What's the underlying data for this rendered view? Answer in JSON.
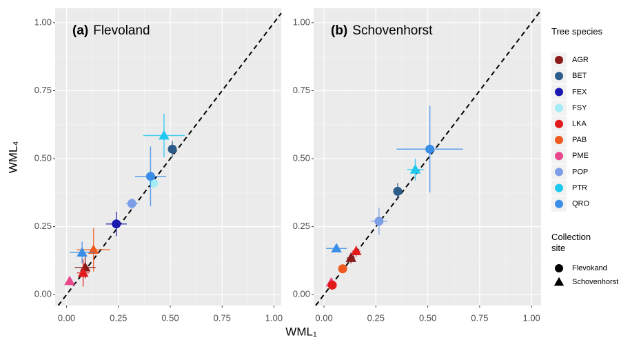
{
  "chart_data": [
    {
      "type": "scatter",
      "panel_label": "(a)",
      "title": "Flevoland",
      "xlim": [
        -0.055,
        1.035
      ],
      "ylim": [
        -0.04,
        1.053
      ],
      "xticks": [
        {
          "value": 0,
          "label": "0.00"
        },
        {
          "value": 0.25,
          "label": "0.25"
        },
        {
          "value": 0.5,
          "label": "0.50"
        },
        {
          "value": 0.75,
          "label": "0.75"
        },
        {
          "value": 1,
          "label": "1.00"
        }
      ],
      "yticks": [
        {
          "value": 0,
          "label": "0.00"
        },
        {
          "value": 0.25,
          "label": "0.25"
        },
        {
          "value": 0.5,
          "label": "0.50"
        },
        {
          "value": 0.75,
          "label": "0.75"
        },
        {
          "value": 1,
          "label": "1.00"
        }
      ],
      "minor_ticks": [
        0.125,
        0.375,
        0.625,
        0.875
      ],
      "grid": true,
      "series": [
        {
          "name": "BET",
          "color": "#2b5c8a",
          "marker": "circle",
          "x": [
            0.51
          ],
          "values": [
            0.535
          ],
          "xerr": [
            0.02
          ],
          "yerr": [
            0.03
          ]
        },
        {
          "name": "PTR",
          "color": "#1ec8f0",
          "marker": "triangle",
          "x": [
            0.47
          ],
          "values": [
            0.585
          ],
          "xerr": [
            0.1
          ],
          "yerr": [
            0.08
          ]
        },
        {
          "name": "FSY",
          "color": "#a6ecf5",
          "marker": "circle",
          "x": [
            0.42
          ],
          "values": [
            0.41
          ],
          "xerr": [
            0.02
          ],
          "yerr": [
            0.02
          ]
        },
        {
          "name": "QRO",
          "color": "#3a8ee8",
          "marker": "circle",
          "x": [
            0.405
          ],
          "values": [
            0.435
          ],
          "xerr": [
            0.075
          ],
          "yerr": [
            0.11
          ]
        },
        {
          "name": "POP",
          "color": "#7b9ee6",
          "marker": "circle",
          "x": [
            0.315
          ],
          "values": [
            0.335
          ],
          "xerr": [
            0.03
          ],
          "yerr": [
            0.02
          ]
        },
        {
          "name": "FEX",
          "color": "#1a1ab0",
          "marker": "circle",
          "x": [
            0.24
          ],
          "values": [
            0.26
          ],
          "xerr": [
            0.05
          ],
          "yerr": [
            0.045
          ]
        },
        {
          "name": "PAB",
          "color": "#f05a1e",
          "marker": "triangle",
          "x": [
            0.13
          ],
          "values": [
            0.165
          ],
          "xerr": [
            0.08
          ],
          "yerr": [
            0.08
          ]
        },
        {
          "name": "QRO",
          "color": "#3a8ee8",
          "marker": "triangle",
          "x": [
            0.075
          ],
          "values": [
            0.155
          ],
          "xerr": [
            0.06
          ],
          "yerr": [
            0.04
          ]
        },
        {
          "name": "AGR",
          "color": "#8b1a1a",
          "marker": "triangle",
          "x": [
            0.09
          ],
          "values": [
            0.1
          ],
          "xerr": [
            0.05
          ],
          "yerr": [
            0.04
          ]
        },
        {
          "name": "LKA",
          "color": "#e31a1c",
          "marker": "triangle",
          "x": [
            0.08
          ],
          "values": [
            0.08
          ],
          "xerr": [
            0.03
          ],
          "yerr": [
            0.05
          ]
        },
        {
          "name": "PME",
          "color": "#e8478c",
          "marker": "triangle",
          "x": [
            0.015
          ],
          "values": [
            0.05
          ],
          "xerr": [
            0.01
          ],
          "yerr": [
            0.01
          ]
        }
      ]
    },
    {
      "type": "scatter",
      "panel_label": "(b)",
      "title": "Schovenhorst",
      "xlim": [
        -0.05,
        1.046
      ],
      "ylim": [
        -0.04,
        1.053
      ],
      "xticks": [
        {
          "value": 0,
          "label": "0.00"
        },
        {
          "value": 0.25,
          "label": "0.25"
        },
        {
          "value": 0.5,
          "label": "0.50"
        },
        {
          "value": 0.75,
          "label": "0.75"
        },
        {
          "value": 1,
          "label": "1.00"
        }
      ],
      "yticks": [
        {
          "value": 0,
          "label": "0.00"
        },
        {
          "value": 0.25,
          "label": "0.25"
        },
        {
          "value": 0.5,
          "label": "0.50"
        },
        {
          "value": 0.75,
          "label": "0.75"
        },
        {
          "value": 1,
          "label": "1.00"
        }
      ],
      "minor_ticks": [
        0.125,
        0.375,
        0.625,
        0.875
      ],
      "grid": true,
      "series": [
        {
          "name": "QRO",
          "color": "#3a8ee8",
          "marker": "circle",
          "x": [
            0.51
          ],
          "values": [
            0.535
          ],
          "xerr": [
            0.16
          ],
          "yerr": [
            0.16
          ]
        },
        {
          "name": "PTR",
          "color": "#1ec8f0",
          "marker": "triangle",
          "x": [
            0.44
          ],
          "values": [
            0.46
          ],
          "xerr": [
            0.04
          ],
          "yerr": [
            0.04
          ]
        },
        {
          "name": "BET",
          "color": "#2b5c8a",
          "marker": "circle",
          "x": [
            0.355
          ],
          "values": [
            0.38
          ],
          "xerr": [
            0.015
          ],
          "yerr": [
            0.03
          ]
        },
        {
          "name": "POP",
          "color": "#7b9ee6",
          "marker": "circle",
          "x": [
            0.265
          ],
          "values": [
            0.27
          ],
          "xerr": [
            0.04
          ],
          "yerr": [
            0.05
          ]
        },
        {
          "name": "QRO",
          "color": "#3a8ee8",
          "marker": "triangle",
          "x": [
            0.06
          ],
          "values": [
            0.17
          ],
          "xerr": [
            0.05
          ],
          "yerr": [
            0.01
          ]
        },
        {
          "name": "LKA",
          "color": "#e31a1c",
          "marker": "triangle",
          "x": [
            0.155
          ],
          "values": [
            0.16
          ],
          "xerr": [
            0.02
          ],
          "yerr": [
            0.02
          ]
        },
        {
          "name": "AGR",
          "color": "#8b1a1a",
          "marker": "triangle",
          "x": [
            0.13
          ],
          "values": [
            0.135
          ],
          "xerr": [
            0.02
          ],
          "yerr": [
            0.02
          ]
        },
        {
          "name": "PAB",
          "color": "#f05a1e",
          "marker": "circle",
          "x": [
            0.09
          ],
          "values": [
            0.095
          ],
          "xerr": [
            0.01
          ],
          "yerr": [
            0.01
          ]
        },
        {
          "name": "PME",
          "color": "#e8478c",
          "marker": "triangle",
          "x": [
            0.035
          ],
          "values": [
            0.045
          ],
          "xerr": [
            0.01
          ],
          "yerr": [
            0.01
          ]
        },
        {
          "name": "LKA",
          "color": "#e31a1c",
          "marker": "circle",
          "x": [
            0.04
          ],
          "values": [
            0.035
          ],
          "xerr": [
            0.01
          ],
          "yerr": [
            0.01
          ]
        }
      ]
    }
  ],
  "xlabel": "WML₁",
  "ylabel": "WML₄",
  "legend": {
    "title": "Tree species",
    "items": [
      {
        "name": "AGR",
        "color": "#8b1a1a"
      },
      {
        "name": "BET",
        "color": "#2b5c8a"
      },
      {
        "name": "FEX",
        "color": "#1a1ab0"
      },
      {
        "name": "FSY",
        "color": "#a6ecf5"
      },
      {
        "name": "LKA",
        "color": "#e31a1c"
      },
      {
        "name": "PAB",
        "color": "#f05a1e"
      },
      {
        "name": "PME",
        "color": "#e8478c"
      },
      {
        "name": "POP",
        "color": "#7b9ee6"
      },
      {
        "name": "PTR",
        "color": "#1ec8f0"
      },
      {
        "name": "QRO",
        "color": "#3a8ee8"
      }
    ],
    "shape_title": "Collection site",
    "shapes": [
      {
        "name": "Flevokand",
        "marker": "circle"
      },
      {
        "name": "Schovenhorst",
        "marker": "triangle"
      }
    ]
  }
}
